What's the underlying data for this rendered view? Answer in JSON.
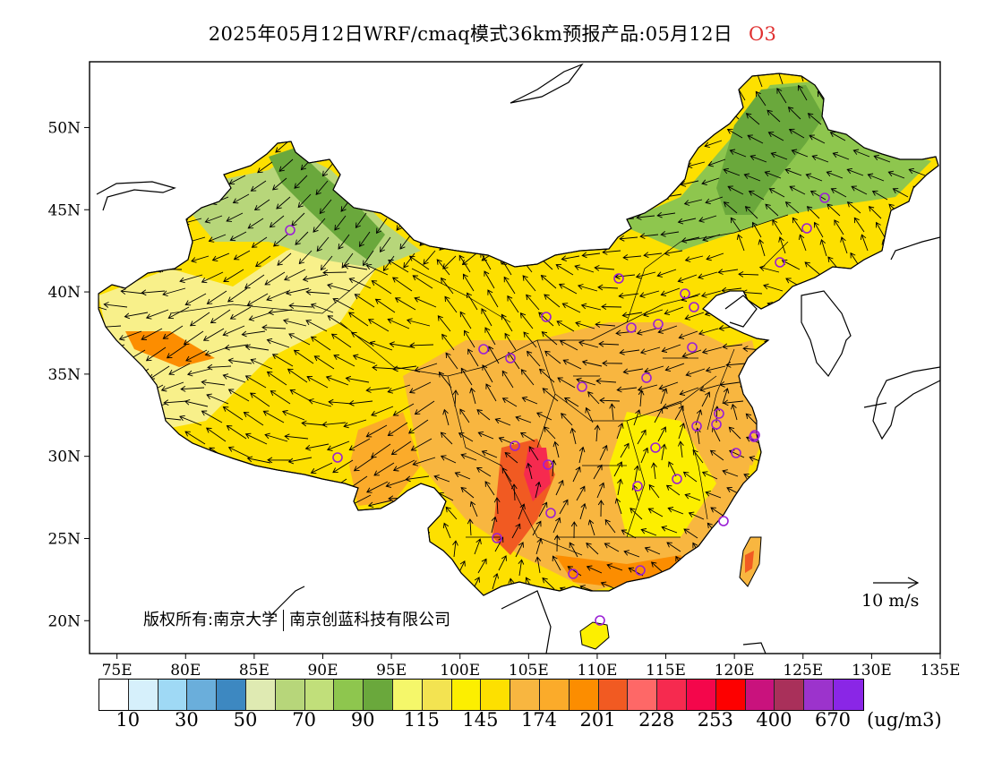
{
  "title": {
    "main": "2025年05月12日WRF/cmaq模式36km预报产品:05月12日",
    "species": "O3"
  },
  "copyright": {
    "owner_a": "版权所有:南京大学",
    "owner_b": "南京创蓝科技有限公司"
  },
  "reference_vector": {
    "label": "10 m/s",
    "speed_ms": 10
  },
  "map": {
    "projection": "lat-lon",
    "lon_range": [
      73,
      135
    ],
    "lat_range": [
      18,
      54
    ],
    "lon_ticks": [
      "75E",
      "80E",
      "85E",
      "90E",
      "95E",
      "100E",
      "105E",
      "110E",
      "115E",
      "120E",
      "125E",
      "130E",
      "135E"
    ],
    "lat_ticks": [
      "20N",
      "25N",
      "30N",
      "35N",
      "40N",
      "45N",
      "50N"
    ],
    "field": "O3 concentration with surface wind vectors",
    "station_marker_color": "#9a1fd6"
  },
  "legend": {
    "unit": "(ug/m3)",
    "colors": [
      "#ffffff",
      "#d6f0fb",
      "#9fd9f5",
      "#6aaedb",
      "#3d88c1",
      "#dfeab2",
      "#b7d67a",
      "#c1df7a",
      "#8ec64e",
      "#6aa83c",
      "#f5f76a",
      "#f3e351",
      "#fcef00",
      "#fde000",
      "#f8b640",
      "#fbab2a",
      "#fc8d00",
      "#f15a22",
      "#fe6867",
      "#f62a4f",
      "#f4064b",
      "#fd0000",
      "#c9127d",
      "#a9305a",
      "#9c33cc",
      "#8a26e6"
    ],
    "labels": [
      "10",
      "30",
      "50",
      "70",
      "90",
      "115",
      "145",
      "174",
      "201",
      "228",
      "253",
      "400",
      "670"
    ]
  }
}
